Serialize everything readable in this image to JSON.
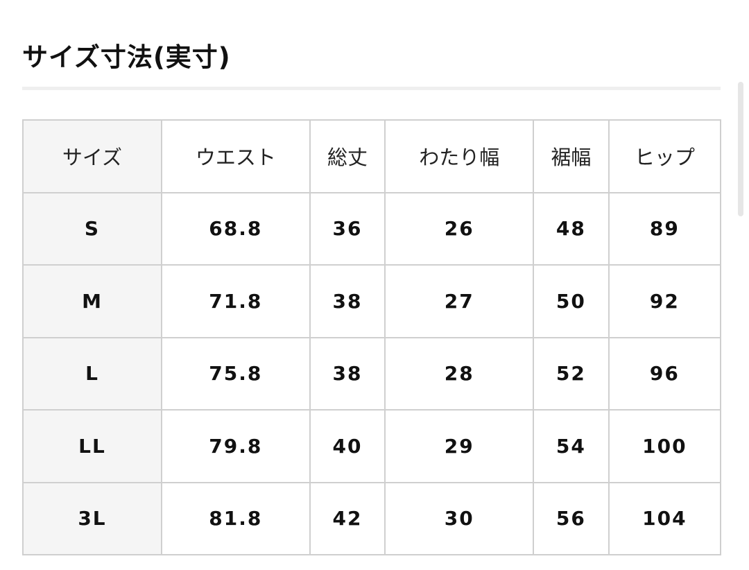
{
  "title": "サイズ寸法(実寸)",
  "table": {
    "headers": [
      "サイズ",
      "ウエスト",
      "総丈",
      "わたり幅",
      "裾幅",
      "ヒップ"
    ],
    "rows": [
      [
        "S",
        "68.8",
        "36",
        "26",
        "48",
        "89"
      ],
      [
        "M",
        "71.8",
        "38",
        "27",
        "50",
        "92"
      ],
      [
        "L",
        "75.8",
        "38",
        "28",
        "52",
        "96"
      ],
      [
        "LL",
        "79.8",
        "40",
        "29",
        "54",
        "100"
      ],
      [
        "3L",
        "81.8",
        "42",
        "30",
        "56",
        "104"
      ]
    ]
  }
}
